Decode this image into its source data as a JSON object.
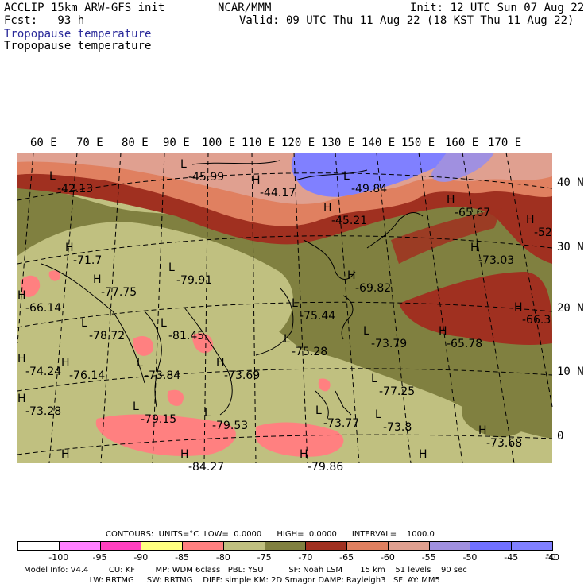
{
  "header": {
    "model_title": "ACCLIP 15km ARW-GFS init",
    "forecast": "Fcst:   93 h",
    "center": "NCAR/MMM",
    "init": "Init: 12 UTC Sun 07 Aug 22",
    "valid": "Valid: 09 UTC Thu 11 Aug 22 (18 KST Thu 11 Aug 22)",
    "field_name_1": "Tropopause temperature",
    "field_name_2": "Tropopause temperature"
  },
  "longitude_labels": [
    "60 E",
    "70 E",
    "80 E",
    "90 E",
    "100 E",
    "110 E",
    "120 E",
    "130 E",
    "140 E",
    "150 E",
    "160 E",
    "170 E"
  ],
  "latitude_labels": [
    "40 N",
    "30 N",
    "20 N",
    "10 N",
    "0"
  ],
  "map_annotations": [
    {
      "kind": "L",
      "value": "-42.13"
    },
    {
      "kind": "L",
      "value": "-45.99"
    },
    {
      "kind": "H",
      "value": "-44.17"
    },
    {
      "kind": "L",
      "value": "-49.84"
    },
    {
      "kind": "H",
      "value": "-45.21"
    },
    {
      "kind": "H",
      "value": "-65.67"
    },
    {
      "kind": "H",
      "value": "-52"
    },
    {
      "kind": "H",
      "value": "-71.7"
    },
    {
      "kind": "L",
      "value": "-79.91"
    },
    {
      "kind": "H",
      "value": "-77.75"
    },
    {
      "kind": "H",
      "value": "-73.03"
    },
    {
      "kind": "H",
      "value": "-69.82"
    },
    {
      "kind": "L",
      "value": "-75.44"
    },
    {
      "kind": "H",
      "value": "-66.14"
    },
    {
      "kind": "L",
      "value": "-78.72"
    },
    {
      "kind": "L",
      "value": "-81.45"
    },
    {
      "kind": "L",
      "value": "-73.79"
    },
    {
      "kind": "H",
      "value": "-65.78"
    },
    {
      "kind": "H",
      "value": "-66.3"
    },
    {
      "kind": "L",
      "value": "-75.28"
    },
    {
      "kind": "H",
      "value": "-74.24"
    },
    {
      "kind": "H",
      "value": "-76.14"
    },
    {
      "kind": "L",
      "value": "-73.84"
    },
    {
      "kind": "H",
      "value": "-73.69"
    },
    {
      "kind": "L",
      "value": "-77.25"
    },
    {
      "kind": "H",
      "value": "-73.28"
    },
    {
      "kind": "L",
      "value": "-79.15"
    },
    {
      "kind": "L",
      "value": "-79.53"
    },
    {
      "kind": "L",
      "value": "-73.77"
    },
    {
      "kind": "L",
      "value": "-73.8"
    },
    {
      "kind": "H",
      "value": "-73.68"
    },
    {
      "kind": "H",
      "value": ""
    },
    {
      "kind": "H",
      "value": "-84.27"
    },
    {
      "kind": "H",
      "value": "-79.86"
    },
    {
      "kind": "H",
      "value": ""
    }
  ],
  "contour_info": "CONTOURS:  UNITS=°C  LOW=  0.0000      HIGH=  0.0000      INTERVAL=    1000.0",
  "legend": {
    "colors": [
      "#ffffff",
      "#ff80ff",
      "#ff40c0",
      "#ffff80",
      "#ff8080",
      "#c0c080",
      "#808040",
      "#a03020",
      "#e08060",
      "#e0a090",
      "#a090e0",
      "#7070ff",
      "#8080ff"
    ],
    "labels": [
      "-100",
      "-95",
      "-90",
      "-85",
      "-80",
      "-75",
      "-70",
      "-65",
      "-60",
      "-55",
      "-50",
      "-45",
      "-40"
    ],
    "unit": "°C"
  },
  "model_info": {
    "line1": "Model Info: V4.4        CU: KF        MP: WDM 6class   PBL: YSU          SF: Noah LSM       15 km    51 levels    90 sec",
    "line2": "                          LW: RRTMG     SW: RRTMG    DIFF: simple KM: 2D Smagor DAMP: Rayleigh3   SFLAY: MM5"
  },
  "colors": {
    "light_olive": "#c0c080",
    "olive": "#808040",
    "dark_red": "#a03020",
    "salmon": "#e08060",
    "pink_tan": "#e0a090",
    "blue_violet": "#8080ff",
    "pink": "#ff8080"
  }
}
